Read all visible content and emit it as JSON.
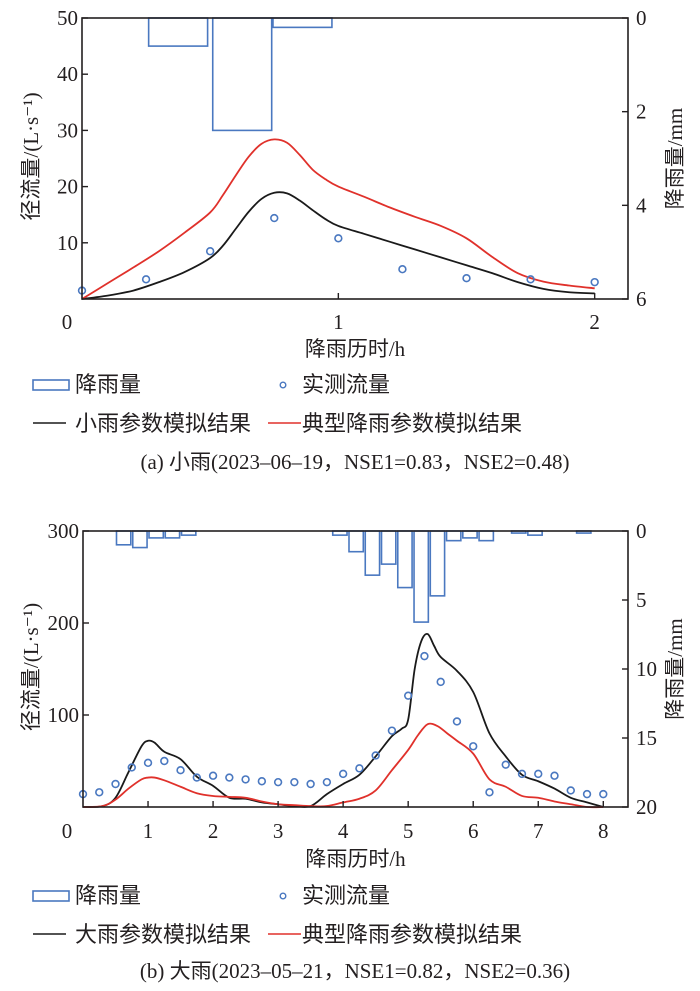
{
  "colors": {
    "rain": "#4a78c0",
    "observed": "#4a78c0",
    "sim_param": "#1a1a1a",
    "sim_typical": "#e0312b",
    "axis": "#231f20"
  },
  "chart_data": [
    {
      "type": "line",
      "panel": "a",
      "caption": "(a) 小雨(2023–06–19，NSE1=0.83，NSE2=0.48)",
      "xlabel": "降雨历时/h",
      "ylabel": "径流量/(L·s⁻¹)",
      "ylabel_right": "降雨量/mm",
      "xlim": [
        0,
        2.13
      ],
      "ylim": [
        0,
        50
      ],
      "ylim_right": [
        6,
        0
      ],
      "xticks": [
        "0",
        "1",
        "2"
      ],
      "xtick_values": [
        0,
        1,
        2
      ],
      "yticks": [
        "10",
        "20",
        "30",
        "40",
        "50"
      ],
      "ytick_values": [
        10,
        20,
        30,
        40,
        50
      ],
      "yticks_right": [
        "0",
        "2",
        "4",
        "6"
      ],
      "ytick_right_values": [
        0,
        2,
        4,
        6
      ],
      "legend": {
        "rain": "降雨量",
        "observed": "实测流量",
        "sim_param": "小雨参数模拟结果",
        "sim_typical": "典型降雨参数模拟结果"
      },
      "rain_bars": {
        "bin_width": 0.23,
        "centers": [
          0.375,
          0.625,
          0.86
        ],
        "values": [
          0.6,
          2.4,
          0.2
        ]
      },
      "observed": {
        "x": [
          0,
          0.25,
          0.5,
          0.75,
          1.0,
          1.25,
          1.5,
          1.75,
          2.0
        ],
        "y": [
          1.5,
          3.5,
          8.5,
          14.4,
          10.8,
          5.3,
          3.7,
          3.5,
          3.0
        ]
      },
      "series": [
        {
          "name": "小雨参数模拟结果",
          "key": "sim_param",
          "x": [
            0,
            0.1,
            0.2,
            0.3,
            0.4,
            0.5,
            0.55,
            0.6,
            0.65,
            0.7,
            0.75,
            0.8,
            0.85,
            0.9,
            0.95,
            1.0,
            1.1,
            1.2,
            1.3,
            1.4,
            1.5,
            1.6,
            1.7,
            1.8,
            1.9,
            2.0
          ],
          "y": [
            0,
            0.6,
            1.5,
            3.0,
            4.8,
            7.3,
            9.5,
            12.5,
            15.5,
            17.8,
            18.9,
            18.8,
            17.5,
            15.8,
            14.2,
            13.0,
            11.6,
            10.2,
            8.8,
            7.4,
            6.0,
            4.6,
            3.0,
            1.8,
            1.2,
            1.0
          ]
        },
        {
          "name": "典型降雨参数模拟结果",
          "key": "sim_typical",
          "x": [
            0,
            0.1,
            0.2,
            0.3,
            0.4,
            0.5,
            0.55,
            0.6,
            0.65,
            0.7,
            0.75,
            0.8,
            0.85,
            0.9,
            0.95,
            1.0,
            1.1,
            1.2,
            1.3,
            1.4,
            1.5,
            1.6,
            1.7,
            1.8,
            1.9,
            2.0
          ],
          "y": [
            0,
            2.8,
            5.6,
            8.5,
            11.8,
            15.4,
            18.5,
            22.0,
            25.3,
            27.6,
            28.4,
            27.8,
            25.6,
            23.0,
            21.3,
            20.0,
            18.2,
            16.3,
            14.6,
            13.0,
            10.8,
            7.5,
            4.6,
            3.1,
            2.4,
            1.9
          ]
        }
      ]
    },
    {
      "type": "line",
      "panel": "b",
      "caption": "(b) 大雨(2023–05–21，NSE1=0.82，NSE2=0.36)",
      "xlabel": "降雨历时/h",
      "ylabel": "径流量/(L·s⁻¹)",
      "ylabel_right": "降雨量/mm",
      "xlim": [
        0,
        8.38
      ],
      "ylim": [
        0,
        300
      ],
      "ylim_right": [
        20,
        0
      ],
      "xticks": [
        "0",
        "1",
        "2",
        "3",
        "4",
        "5",
        "6",
        "7",
        "8"
      ],
      "xtick_values": [
        0,
        1,
        2,
        3,
        4,
        5,
        6,
        7,
        8
      ],
      "yticks": [
        "100",
        "200",
        "300"
      ],
      "ytick_values": [
        100,
        200,
        300
      ],
      "yticks_right": [
        "0",
        "5",
        "10",
        "15",
        "20"
      ],
      "ytick_right_values": [
        0,
        5,
        10,
        15,
        20
      ],
      "legend": {
        "rain": "降雨量",
        "observed": "实测流量",
        "sim_param": "大雨参数模拟结果",
        "sim_typical": "典型降雨参数模拟结果"
      },
      "rain_bars": {
        "bin_width": 0.22,
        "centers": [
          0.625,
          0.875,
          1.125,
          1.375,
          1.625,
          3.95,
          4.2,
          4.45,
          4.7,
          4.95,
          5.2,
          5.45,
          5.7,
          5.95,
          6.2,
          6.7,
          6.95,
          7.7
        ],
        "values": [
          1.0,
          1.2,
          0.5,
          0.5,
          0.3,
          0.3,
          1.5,
          3.2,
          2.4,
          4.1,
          6.6,
          4.7,
          0.7,
          0.5,
          0.7,
          0.15,
          0.3,
          0.15
        ]
      },
      "observed": {
        "x": [
          0,
          0.25,
          0.5,
          0.75,
          1.0,
          1.25,
          1.5,
          1.75,
          2.0,
          2.25,
          2.5,
          2.75,
          3.0,
          3.25,
          3.5,
          3.75,
          4.0,
          4.25,
          4.5,
          4.75,
          5.0,
          5.25,
          5.5,
          5.75,
          6.0,
          6.25,
          6.5,
          6.75,
          7.0,
          7.25,
          7.5,
          7.75,
          8.0
        ],
        "y": [
          14,
          16,
          25,
          43,
          48,
          50,
          40,
          32,
          34,
          32,
          30,
          28,
          27,
          27,
          25,
          27,
          36,
          42,
          56,
          83,
          121,
          164,
          136,
          93,
          66,
          16,
          46,
          36,
          36,
          34,
          18,
          14,
          14
        ]
      },
      "series": [
        {
          "name": "大雨参数模拟结果",
          "key": "sim_param",
          "x": [
            0,
            0.3,
            0.5,
            0.7,
            0.9,
            1.0,
            1.1,
            1.25,
            1.5,
            1.75,
            2.0,
            2.25,
            2.5,
            2.75,
            3.0,
            3.25,
            3.5,
            3.75,
            4.0,
            4.25,
            4.5,
            4.75,
            4.9,
            5.0,
            5.1,
            5.2,
            5.3,
            5.4,
            5.5,
            5.75,
            6.0,
            6.25,
            6.5,
            6.75,
            7.0,
            7.25,
            7.5,
            7.75,
            8.0
          ],
          "y": [
            0,
            1,
            10,
            38,
            66,
            72,
            70,
            60,
            52,
            33,
            23,
            10,
            9,
            5,
            3,
            1,
            1,
            14,
            25,
            35,
            55,
            77,
            85,
            95,
            150,
            180,
            188,
            175,
            163,
            148,
            125,
            80,
            55,
            35,
            28,
            20,
            10,
            5,
            0
          ]
        },
        {
          "name": "典型降雨参数模拟结果",
          "key": "sim_typical",
          "x": [
            0,
            0.3,
            0.5,
            0.7,
            0.9,
            1.0,
            1.1,
            1.25,
            1.5,
            1.75,
            2.0,
            2.25,
            2.5,
            2.75,
            3.0,
            3.25,
            3.5,
            3.75,
            4.0,
            4.25,
            4.5,
            4.75,
            5.0,
            5.15,
            5.3,
            5.45,
            5.6,
            5.75,
            6.0,
            6.25,
            6.5,
            6.75,
            7.0,
            7.25,
            7.5,
            7.75,
            8.0
          ],
          "y": [
            0,
            1,
            8,
            20,
            30,
            32,
            32,
            29,
            22,
            15,
            12,
            11,
            10,
            6,
            3,
            2,
            1,
            1,
            5,
            9,
            18,
            40,
            62,
            78,
            90,
            88,
            80,
            72,
            58,
            30,
            22,
            12,
            10,
            6,
            3,
            0,
            0
          ]
        }
      ]
    }
  ]
}
